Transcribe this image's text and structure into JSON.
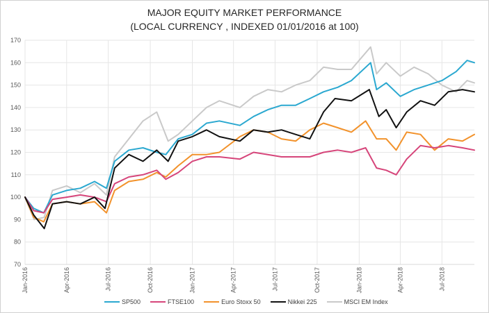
{
  "chart_data": {
    "type": "line",
    "title": "MAJOR EQUITY MARKET PERFORMANCE",
    "subtitle": "(LOCAL CURRENCY , INDEXED 01/01/2016 at 100)",
    "xlabel": "",
    "ylabel": "",
    "ylim": [
      70,
      170
    ],
    "yticks": [
      70,
      80,
      90,
      100,
      110,
      120,
      130,
      140,
      150,
      160,
      170
    ],
    "xlim": [
      "2016-01-01",
      "2018-09-10"
    ],
    "xticks": [
      {
        "date": "2016-01-01",
        "label": "Jan-2016"
      },
      {
        "date": "2016-04-01",
        "label": "Apr-2016"
      },
      {
        "date": "2016-07-01",
        "label": "Jul-2016"
      },
      {
        "date": "2016-10-01",
        "label": "Oct-2016"
      },
      {
        "date": "2017-01-01",
        "label": "Jan-2017"
      },
      {
        "date": "2017-04-01",
        "label": "Apr-2017"
      },
      {
        "date": "2017-07-01",
        "label": "Jul-2017"
      },
      {
        "date": "2017-10-01",
        "label": "Oct-2017"
      },
      {
        "date": "2018-01-01",
        "label": "Jan-2018"
      },
      {
        "date": "2018-04-01",
        "label": "Apr-2018"
      },
      {
        "date": "2018-07-01",
        "label": "Jul-2018"
      }
    ],
    "grid": true,
    "legend_position": "bottom",
    "series": [
      {
        "name": "SP500",
        "color": "#2aa8d0",
        "x": [
          "2016-01-01",
          "2016-01-20",
          "2016-02-11",
          "2016-03-01",
          "2016-04-01",
          "2016-05-01",
          "2016-06-01",
          "2016-06-27",
          "2016-07-15",
          "2016-08-15",
          "2016-09-15",
          "2016-10-15",
          "2016-11-04",
          "2016-12-01",
          "2017-01-01",
          "2017-02-01",
          "2017-03-01",
          "2017-04-15",
          "2017-05-15",
          "2017-06-15",
          "2017-07-15",
          "2017-08-15",
          "2017-09-15",
          "2017-10-15",
          "2017-11-15",
          "2017-12-15",
          "2018-01-26",
          "2018-02-08",
          "2018-03-01",
          "2018-04-01",
          "2018-05-01",
          "2018-06-01",
          "2018-07-01",
          "2018-08-01",
          "2018-08-25",
          "2018-09-10"
        ],
        "values": [
          100,
          95,
          93,
          101,
          103,
          104,
          107,
          104,
          116,
          121,
          122,
          120,
          119,
          126,
          128,
          133,
          134,
          132,
          136,
          139,
          141,
          141,
          144,
          147,
          149,
          152,
          160,
          148,
          151,
          145,
          148,
          150,
          152,
          156,
          161,
          160
        ]
      },
      {
        "name": "FTSE100",
        "color": "#d6457a",
        "x": [
          "2016-01-01",
          "2016-01-20",
          "2016-02-11",
          "2016-03-01",
          "2016-04-01",
          "2016-05-01",
          "2016-06-01",
          "2016-06-27",
          "2016-07-15",
          "2016-08-15",
          "2016-09-15",
          "2016-10-15",
          "2016-11-04",
          "2016-12-01",
          "2017-01-01",
          "2017-02-01",
          "2017-03-01",
          "2017-04-15",
          "2017-05-15",
          "2017-06-15",
          "2017-07-15",
          "2017-08-15",
          "2017-09-15",
          "2017-10-15",
          "2017-11-15",
          "2017-12-15",
          "2018-01-15",
          "2018-02-08",
          "2018-03-01",
          "2018-03-23",
          "2018-04-15",
          "2018-05-15",
          "2018-06-15",
          "2018-07-15",
          "2018-08-15",
          "2018-09-10"
        ],
        "values": [
          100,
          94,
          93,
          99,
          100,
          101,
          100,
          98,
          106,
          109,
          110,
          112,
          108,
          111,
          116,
          118,
          118,
          117,
          120,
          119,
          118,
          118,
          118,
          120,
          121,
          120,
          122,
          113,
          112,
          110,
          117,
          123,
          122,
          123,
          122,
          121
        ]
      },
      {
        "name": "Euro Stoxx 50",
        "color": "#f2922b",
        "x": [
          "2016-01-01",
          "2016-01-20",
          "2016-02-11",
          "2016-03-01",
          "2016-04-01",
          "2016-05-01",
          "2016-06-01",
          "2016-06-27",
          "2016-07-15",
          "2016-08-15",
          "2016-09-15",
          "2016-10-15",
          "2016-11-04",
          "2016-12-01",
          "2017-01-01",
          "2017-02-01",
          "2017-03-01",
          "2017-04-15",
          "2017-05-15",
          "2017-06-15",
          "2017-07-15",
          "2017-08-15",
          "2017-09-15",
          "2017-10-15",
          "2017-11-15",
          "2017-12-15",
          "2018-01-15",
          "2018-02-08",
          "2018-03-01",
          "2018-03-23",
          "2018-04-15",
          "2018-05-15",
          "2018-06-15",
          "2018-07-15",
          "2018-08-15",
          "2018-09-10"
        ],
        "values": [
          100,
          91,
          89,
          97,
          98,
          97,
          98,
          93,
          103,
          107,
          108,
          111,
          109,
          114,
          119,
          119,
          120,
          127,
          130,
          129,
          126,
          125,
          130,
          133,
          131,
          129,
          134,
          126,
          126,
          121,
          129,
          128,
          121,
          126,
          125,
          128
        ]
      },
      {
        "name": "Nikkei 225",
        "color": "#111111",
        "x": [
          "2016-01-01",
          "2016-01-20",
          "2016-02-12",
          "2016-03-01",
          "2016-04-01",
          "2016-05-01",
          "2016-06-01",
          "2016-06-24",
          "2016-07-15",
          "2016-08-15",
          "2016-09-15",
          "2016-10-15",
          "2016-11-09",
          "2016-12-01",
          "2017-01-01",
          "2017-02-01",
          "2017-03-01",
          "2017-04-15",
          "2017-05-15",
          "2017-06-15",
          "2017-07-15",
          "2017-08-15",
          "2017-09-15",
          "2017-10-15",
          "2017-11-09",
          "2017-12-15",
          "2018-01-23",
          "2018-02-13",
          "2018-03-01",
          "2018-03-23",
          "2018-04-15",
          "2018-05-15",
          "2018-06-15",
          "2018-07-15",
          "2018-08-15",
          "2018-09-10"
        ],
        "values": [
          100,
          92,
          86,
          97,
          98,
          97,
          100,
          95,
          113,
          119,
          116,
          121,
          116,
          125,
          127,
          130,
          127,
          125,
          130,
          129,
          130,
          128,
          126,
          138,
          144,
          143,
          148,
          136,
          139,
          131,
          138,
          143,
          141,
          147,
          148,
          147
        ]
      },
      {
        "name": "MSCI EM Index",
        "color": "#c9c9c9",
        "x": [
          "2016-01-01",
          "2016-01-21",
          "2016-02-12",
          "2016-03-01",
          "2016-04-01",
          "2016-05-01",
          "2016-06-01",
          "2016-06-27",
          "2016-07-15",
          "2016-08-15",
          "2016-09-15",
          "2016-10-15",
          "2016-11-09",
          "2016-12-01",
          "2017-01-01",
          "2017-02-01",
          "2017-03-01",
          "2017-04-15",
          "2017-05-15",
          "2017-06-15",
          "2017-07-15",
          "2017-08-15",
          "2017-09-15",
          "2017-10-15",
          "2017-11-15",
          "2017-12-15",
          "2018-01-26",
          "2018-02-08",
          "2018-03-01",
          "2018-04-01",
          "2018-05-01",
          "2018-06-01",
          "2018-07-01",
          "2018-08-01",
          "2018-08-25",
          "2018-09-10"
        ],
        "values": [
          100,
          90,
          91,
          103,
          105,
          102,
          106,
          101,
          118,
          126,
          134,
          138,
          125,
          128,
          134,
          140,
          143,
          140,
          145,
          148,
          147,
          150,
          152,
          158,
          157,
          157,
          167,
          155,
          160,
          154,
          158,
          155,
          150,
          147,
          152,
          151
        ]
      }
    ]
  }
}
